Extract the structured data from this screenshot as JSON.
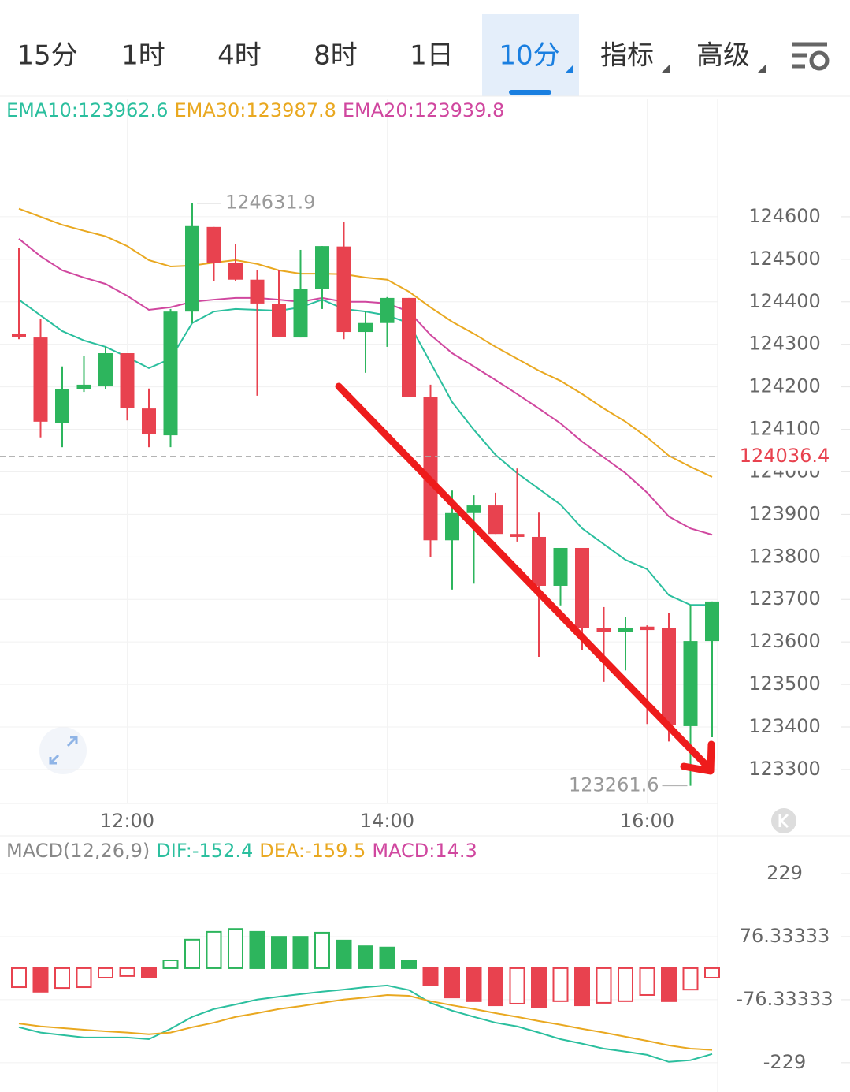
{
  "toolbar": {
    "tabs": [
      "15分",
      "1时",
      "4时",
      "8时",
      "1日",
      "10分",
      "指标",
      "高级"
    ],
    "active": 5
  },
  "chart_data": [
    {
      "type": "candlestick",
      "categories": [
        null,
        null,
        null,
        null,
        null,
        "12:00",
        null,
        null,
        null,
        null,
        null,
        null,
        null,
        null,
        null,
        null,
        null,
        "14:00",
        null,
        null,
        null,
        null,
        null,
        null,
        null,
        null,
        null,
        null,
        null,
        "16:00",
        null,
        null,
        null
      ],
      "open": [
        124325,
        124316,
        124114,
        124194,
        124201,
        124279,
        124149,
        124086,
        124377,
        124576,
        124491,
        124452,
        124394,
        124316,
        124431,
        124530,
        124329,
        124350,
        124409,
        124177,
        123839,
        123903,
        123921,
        123854,
        123847,
        123732,
        123821,
        123632,
        123624,
        123636,
        123632,
        123402,
        123602
      ],
      "high": [
        124526,
        124359,
        124248,
        124272,
        124294,
        124279,
        124196,
        124383,
        124631.9,
        124576,
        124535,
        124474,
        124474,
        124522,
        124531,
        124587,
        124377,
        124411,
        124409,
        124205,
        123956,
        123945,
        123951,
        124008,
        123904,
        123821,
        123821,
        123682,
        123658,
        123639,
        123669,
        123687,
        123695
      ],
      "low": [
        124312,
        124081,
        124058,
        124188,
        124194,
        124121,
        124058,
        124058,
        124350,
        124448,
        124448,
        124179,
        124318,
        124316,
        124383,
        124312,
        124233,
        124294,
        124177,
        123799,
        123723,
        123737,
        123854,
        123836,
        123565,
        123686,
        123580,
        123506,
        123533,
        123407,
        123366,
        123261.6,
        123376
      ],
      "close": [
        124318,
        124118,
        124194,
        124205,
        124279,
        124151,
        124088,
        124377,
        124578,
        124492,
        124452,
        124396,
        124318,
        124431,
        124531,
        124329,
        124350,
        124409,
        124177,
        123839,
        123903,
        123921,
        123854,
        123847,
        123732,
        123821,
        123632,
        123624,
        123632,
        123628,
        123404,
        123602,
        123695
      ],
      "up_color": "#2db55d",
      "down_color": "#e8424f",
      "series": [
        {
          "name": "EMA10:123962.6",
          "color": "#2bbf9e",
          "values": [
            124405,
            124368,
            124331,
            124309,
            124294,
            124270,
            124244,
            124266,
            124350,
            124377,
            124383,
            124381,
            124379,
            124387,
            124405,
            124383,
            124377,
            124368,
            124350,
            124257,
            124164,
            124099,
            124040,
            123997,
            123960,
            123923,
            123867,
            123830,
            123793,
            123771,
            123710,
            123687,
            123687
          ]
        },
        {
          "name": "EMA30:123987.8",
          "color": "#e9a820",
          "values": [
            124619,
            124600,
            124581,
            124567,
            124554,
            124531,
            124498,
            124483,
            124485,
            124492,
            124498,
            124489,
            124474,
            124466,
            124466,
            124465,
            124457,
            124452,
            124424,
            124387,
            124353,
            124325,
            124294,
            124266,
            124238,
            124214,
            124183,
            124149,
            124118,
            124081,
            124038,
            124012,
            123988
          ]
        },
        {
          "name": "EMA20:123939.8",
          "color": "#d0479f",
          "values": [
            124548,
            124507,
            124474,
            124457,
            124442,
            124414,
            124381,
            124387,
            124400,
            124405,
            124409,
            124409,
            124405,
            124400,
            124409,
            124400,
            124400,
            124396,
            124377,
            124322,
            124279,
            124248,
            124216,
            124183,
            124149,
            124114,
            124071,
            124034,
            123997,
            123951,
            123895,
            123867,
            123852
          ]
        }
      ],
      "last_price": 124036.4,
      "ylim": [
        123222,
        124878
      ],
      "yticks": [
        124600,
        124500,
        124400,
        124300,
        124200,
        124100,
        124000,
        123900,
        123800,
        123700,
        123600,
        123500,
        123400,
        123300
      ],
      "grid": true
    },
    {
      "type": "macd",
      "title": "MACD(12,26,9)",
      "up_color": "#2db55d",
      "down_color": "#e8424f",
      "series": [
        {
          "name": "DIF:-152.4",
          "color": "#2bbf9e",
          "values": [
            -143,
            -156,
            -162,
            -168,
            -168,
            -168,
            -172,
            -147,
            -118,
            -99,
            -88,
            -76,
            -69,
            -63,
            -57,
            -52,
            -46,
            -42,
            -53,
            -84,
            -103,
            -118,
            -132,
            -141,
            -156,
            -172,
            -183,
            -195,
            -202,
            -210,
            -227,
            -223,
            -208
          ]
        },
        {
          "name": "DEA:-159.5",
          "color": "#e9a820",
          "values": [
            -134,
            -141,
            -145,
            -149,
            -153,
            -156,
            -160,
            -156,
            -143,
            -132,
            -118,
            -109,
            -99,
            -92,
            -84,
            -76,
            -71,
            -65,
            -67,
            -80,
            -90,
            -99,
            -109,
            -118,
            -128,
            -137,
            -147,
            -156,
            -166,
            -176,
            -187,
            -195,
            -198
          ]
        },
        {
          "name": "MACD:14.3",
          "color": "#d0479f",
          "kind": "histogram",
          "values": [
            -46,
            -57,
            -48,
            -46,
            -23,
            -19,
            -23,
            19,
            69,
            88,
            95,
            88,
            76,
            76,
            86,
            67,
            53,
            50,
            19,
            -42,
            -71,
            -80,
            -90,
            -86,
            -95,
            -80,
            -90,
            -84,
            -80,
            -65,
            -80,
            -52,
            -23
          ]
        }
      ],
      "ylim": [
        -300,
        317
      ],
      "yticks": [
        229,
        76.33333,
        -76.33333,
        -229
      ],
      "grid": true
    }
  ]
}
